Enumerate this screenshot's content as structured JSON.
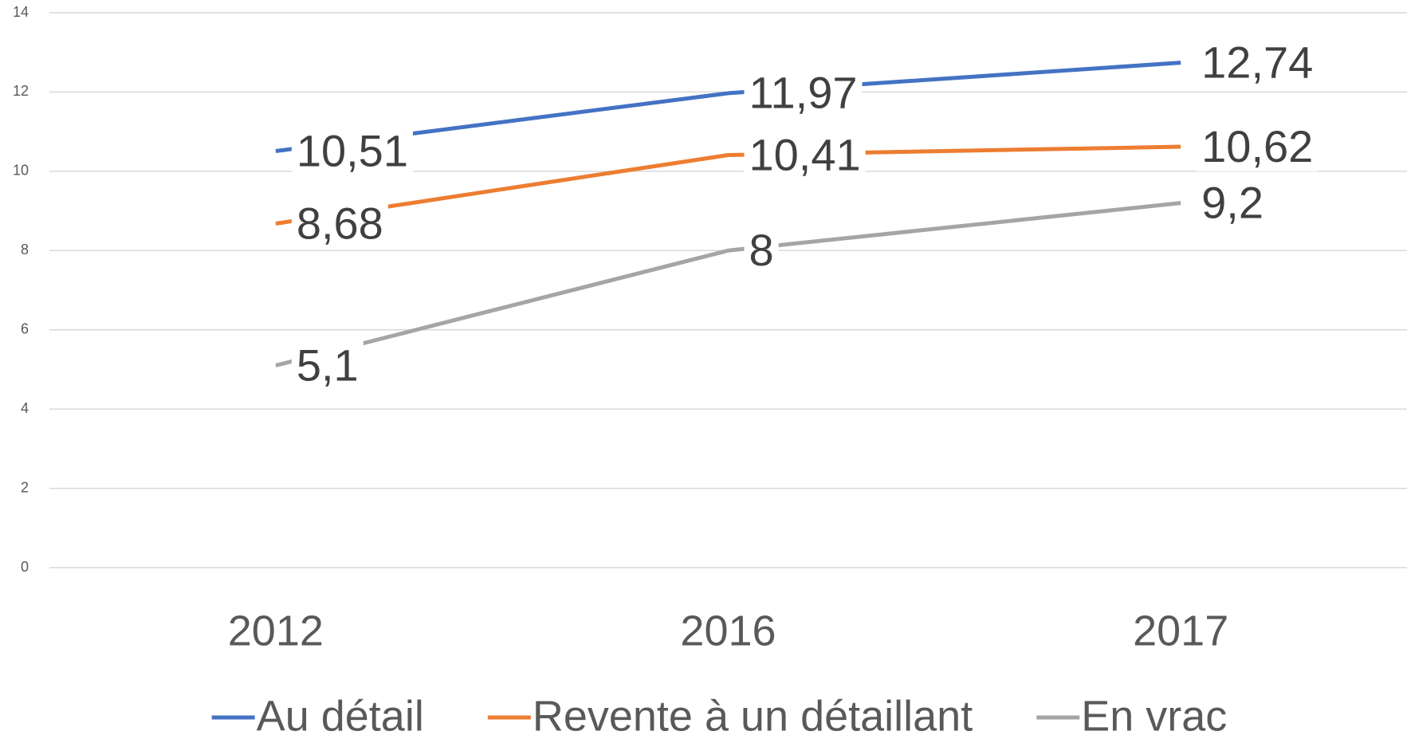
{
  "chart_data": {
    "type": "line",
    "categories": [
      "2012",
      "2016",
      "2017"
    ],
    "series": [
      {
        "name": "Au détail",
        "color": "#4472c4",
        "values": [
          10.51,
          11.97,
          12.74
        ],
        "value_labels": [
          "10,51",
          "11,97",
          "12,74"
        ]
      },
      {
        "name": "Revente à un détaillant",
        "color": "#ed7d31",
        "values": [
          8.68,
          10.41,
          10.62
        ],
        "value_labels": [
          "8,68",
          "10,41",
          "10,62"
        ]
      },
      {
        "name": "En vrac",
        "color": "#a5a5a5",
        "values": [
          5.1,
          8,
          9.2
        ],
        "value_labels": [
          "5,1",
          "8",
          "9,2"
        ]
      }
    ],
    "ylim": [
      0,
      14
    ],
    "yticks": [
      0,
      2,
      4,
      6,
      8,
      10,
      12,
      14
    ],
    "grid": true,
    "legend": "bottom"
  }
}
